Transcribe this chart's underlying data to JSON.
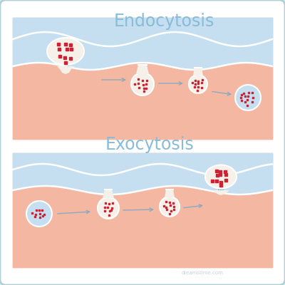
{
  "bg_color": "#dceef0",
  "panel_bg": "#ffffff",
  "cell_color": "#f4b8a2",
  "fluid_color": "#c5dff0",
  "vesicle_fill": "#f5f0e8",
  "dot_color": "#cc2233",
  "arrow_color": "#8aaac0",
  "title1": "Endocytosis",
  "title2": "Exocytosis",
  "title_color": "#88bcd8",
  "title_fontsize": 17,
  "watermark_color": "#b8c8d0",
  "watermark_text": "dreamstime.com"
}
